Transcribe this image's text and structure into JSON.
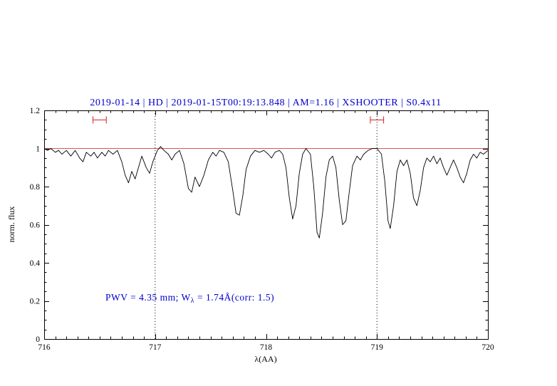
{
  "title": {
    "text": "2019-01-14 | HD | 2019-01-15T00:19:13.848 | AM=1.16 | XSHOOTER | S0.4x11",
    "color": "#0000cd"
  },
  "annotation": {
    "full": "PWV = 4.35 mm; W_λ = 1.74Å(corr: 1.5)",
    "prefix": "PWV = 4.35 mm; W",
    "sub": "λ",
    "suffix": " = 1.74Å(corr: 1.5)",
    "color": "#0000cd"
  },
  "chart_data": {
    "type": "line",
    "title": "2019-01-14 | HD | 2019-01-15T00:19:13.848 | AM=1.16 | XSHOOTER | S0.4x11",
    "xlabel": "λ(AA)",
    "ylabel": "norm. flux",
    "xlim": [
      716,
      720
    ],
    "ylim": [
      0,
      1.2
    ],
    "grid": "off",
    "legend": "none",
    "x_ticks": [
      {
        "v": 716,
        "label": "716"
      },
      {
        "v": 717,
        "label": "717"
      },
      {
        "v": 718,
        "label": "718"
      },
      {
        "v": 719,
        "label": "719"
      },
      {
        "v": 720,
        "label": "720"
      }
    ],
    "y_ticks": [
      {
        "v": 0,
        "label": "0"
      },
      {
        "v": 0.2,
        "label": "0.2"
      },
      {
        "v": 0.4,
        "label": "0.4"
      },
      {
        "v": 0.6,
        "label": "0.6"
      },
      {
        "v": 0.8,
        "label": "0.8"
      },
      {
        "v": 1,
        "label": "1"
      },
      {
        "v": 1.2,
        "label": "1.2"
      }
    ],
    "x_minor_step": 0.1,
    "y_minor_step": 0.05,
    "vlines": [
      {
        "x": 717,
        "style": "dotted",
        "color": "#000000"
      },
      {
        "x": 719,
        "style": "dotted",
        "color": "#000000"
      }
    ],
    "range_markers": [
      {
        "x1": 716.44,
        "x2": 716.56,
        "y": 1.15,
        "color": "#cc2222"
      },
      {
        "x1": 718.94,
        "x2": 719.06,
        "y": 1.15,
        "color": "#cc2222"
      }
    ],
    "series": [
      {
        "name": "continuum",
        "color": "#cc2222",
        "width": 0.8,
        "x": [
          716,
          720
        ],
        "y": [
          1,
          1
        ]
      },
      {
        "name": "telluric-spectrum",
        "color": "#000000",
        "width": 0.9,
        "x": [
          716.0,
          716.03,
          716.06,
          716.1,
          716.13,
          716.16,
          716.2,
          716.24,
          716.28,
          716.32,
          716.35,
          716.38,
          716.42,
          716.45,
          716.48,
          716.52,
          716.55,
          716.58,
          716.62,
          716.66,
          716.7,
          716.73,
          716.76,
          716.79,
          716.82,
          716.85,
          716.88,
          716.92,
          716.95,
          716.98,
          717.02,
          717.05,
          717.08,
          717.12,
          717.15,
          717.18,
          717.22,
          717.26,
          717.3,
          717.33,
          717.36,
          717.4,
          717.44,
          717.48,
          717.52,
          717.55,
          717.58,
          717.62,
          717.66,
          717.7,
          717.73,
          717.76,
          717.79,
          717.82,
          717.86,
          717.9,
          717.94,
          717.98,
          718.02,
          718.05,
          718.08,
          718.12,
          718.15,
          718.18,
          718.21,
          718.24,
          718.27,
          718.3,
          718.33,
          718.36,
          718.4,
          718.43,
          718.46,
          718.48,
          718.51,
          718.54,
          718.57,
          718.6,
          718.63,
          718.66,
          718.69,
          718.72,
          718.75,
          718.78,
          718.82,
          718.85,
          718.88,
          718.92,
          718.96,
          719.0,
          719.04,
          719.07,
          719.1,
          719.12,
          719.15,
          719.18,
          719.21,
          719.24,
          719.27,
          719.3,
          719.33,
          719.36,
          719.39,
          719.42,
          719.45,
          719.48,
          719.51,
          719.54,
          719.57,
          719.6,
          719.63,
          719.66,
          719.69,
          719.72,
          719.75,
          719.78,
          719.81,
          719.84,
          719.87,
          719.9,
          719.93,
          719.96,
          720.0
        ],
        "y": [
          1.0,
          0.99,
          1.0,
          0.98,
          0.99,
          0.97,
          0.99,
          0.96,
          0.99,
          0.95,
          0.93,
          0.98,
          0.96,
          0.98,
          0.95,
          0.98,
          0.96,
          0.99,
          0.97,
          0.99,
          0.93,
          0.86,
          0.82,
          0.88,
          0.84,
          0.9,
          0.96,
          0.9,
          0.87,
          0.93,
          0.99,
          1.01,
          0.99,
          0.97,
          0.94,
          0.97,
          0.99,
          0.92,
          0.79,
          0.77,
          0.85,
          0.8,
          0.86,
          0.94,
          0.98,
          0.96,
          0.99,
          0.98,
          0.93,
          0.78,
          0.66,
          0.65,
          0.75,
          0.89,
          0.96,
          0.99,
          0.98,
          0.99,
          0.97,
          0.95,
          0.98,
          0.99,
          0.97,
          0.9,
          0.74,
          0.63,
          0.7,
          0.87,
          0.97,
          1.0,
          0.97,
          0.8,
          0.56,
          0.53,
          0.66,
          0.85,
          0.94,
          0.96,
          0.9,
          0.73,
          0.6,
          0.62,
          0.77,
          0.91,
          0.96,
          0.94,
          0.97,
          0.99,
          1.0,
          1.0,
          0.97,
          0.83,
          0.62,
          0.58,
          0.7,
          0.88,
          0.94,
          0.91,
          0.94,
          0.87,
          0.74,
          0.7,
          0.78,
          0.9,
          0.95,
          0.93,
          0.96,
          0.92,
          0.95,
          0.9,
          0.86,
          0.9,
          0.94,
          0.9,
          0.85,
          0.82,
          0.87,
          0.94,
          0.97,
          0.95,
          0.98,
          0.97,
          0.99
        ]
      }
    ]
  }
}
